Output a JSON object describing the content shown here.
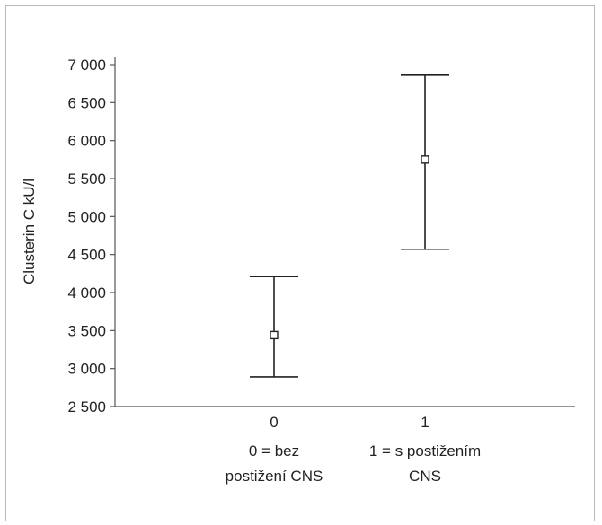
{
  "chart_data": {
    "type": "errorbar",
    "ylabel": "Clusterin C kU/l",
    "xlabel": "",
    "ylim": [
      2500,
      7000
    ],
    "yticks": [
      {
        "value": 2500,
        "label": "2 500"
      },
      {
        "value": 3000,
        "label": "3 000"
      },
      {
        "value": 3500,
        "label": "3 500"
      },
      {
        "value": 4000,
        "label": "4 000"
      },
      {
        "value": 4500,
        "label": "4 500"
      },
      {
        "value": 5000,
        "label": "5 000"
      },
      {
        "value": 5500,
        "label": "5 500"
      },
      {
        "value": 6000,
        "label": "6 000"
      },
      {
        "value": 6500,
        "label": "6 500"
      },
      {
        "value": 7000,
        "label": "7 000"
      }
    ],
    "categories": [
      {
        "code": "0",
        "line1": "0 = bez",
        "line2": "postižení CNS"
      },
      {
        "code": "1",
        "line1": "1 = s postižením",
        "line2": "CNS"
      }
    ],
    "points": [
      {
        "mean": 3440,
        "lower": 2890,
        "upper": 4210
      },
      {
        "mean": 5750,
        "lower": 4570,
        "upper": 6860
      }
    ],
    "grid": false,
    "colors": {
      "axis": "#555555",
      "marker": "#222222",
      "frame": "#b9b9b9"
    }
  }
}
